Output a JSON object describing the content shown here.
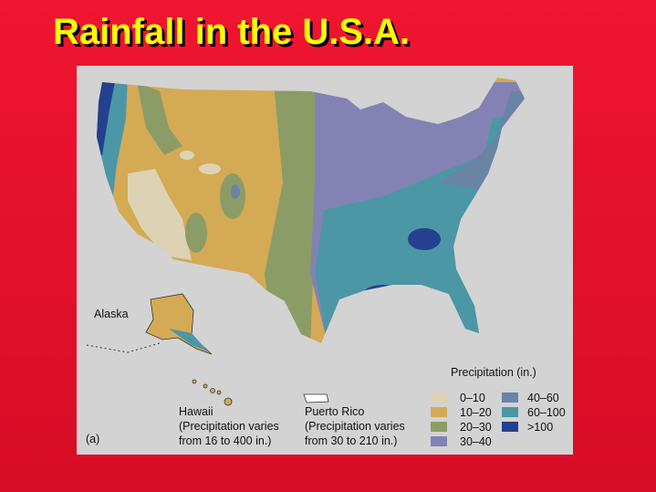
{
  "title": "Rainfall in the U.S.A.",
  "map": {
    "labels": {
      "alaska": "Alaska",
      "hawaii": [
        "Hawaii",
        "(Precipitation varies",
        "from 16 to 400 in.)"
      ],
      "puerto_rico": [
        "Puerto Rico",
        "(Precipitation varies",
        "from 30 to 210 in.)"
      ],
      "panel": "(a)"
    },
    "legend": {
      "title": "Precipitation (in.)",
      "items": [
        {
          "label": "0–10",
          "color": "#ddd2b4"
        },
        {
          "label": "10–20",
          "color": "#d4aa55"
        },
        {
          "label": "20–30",
          "color": "#8c9c66"
        },
        {
          "label": "30–40",
          "color": "#8482b4"
        },
        {
          "label": "40–60",
          "color": "#6a84a4"
        },
        {
          "label": "60–100",
          "color": "#4b97a6"
        },
        {
          "label": ">100",
          "color": "#24408e"
        }
      ]
    }
  }
}
